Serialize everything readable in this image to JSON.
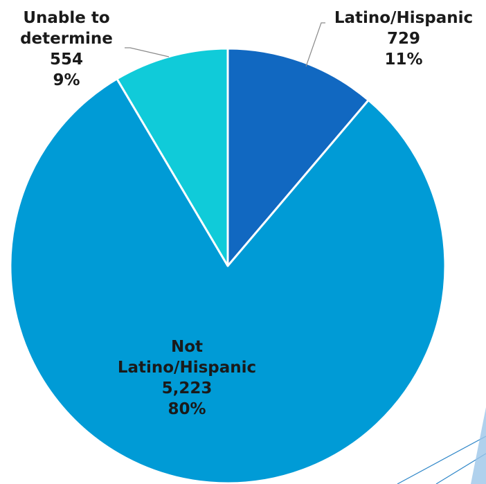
{
  "chart_data": {
    "type": "pie",
    "start_angle_deg": 0,
    "direction": "clockwise",
    "slices": [
      {
        "label_lines": [
          "Latino/Hispanic"
        ],
        "value": 729,
        "value_text": "729",
        "percent_text": "11%",
        "color": "#1168c1"
      },
      {
        "label_lines": [
          "Not",
          "Latino/Hispanic"
        ],
        "value": 5223,
        "value_text": "5,223",
        "percent_text": "80%",
        "color": "#009bd6"
      },
      {
        "label_lines": [
          "Unable to",
          "determine"
        ],
        "value": 554,
        "value_text": "554",
        "percent_text": "9%",
        "color": "#10cbd9"
      }
    ],
    "separator_color": "#ffffff",
    "leader_line_color": "#8a8a8a",
    "decoration_color": "#2e86c8"
  }
}
